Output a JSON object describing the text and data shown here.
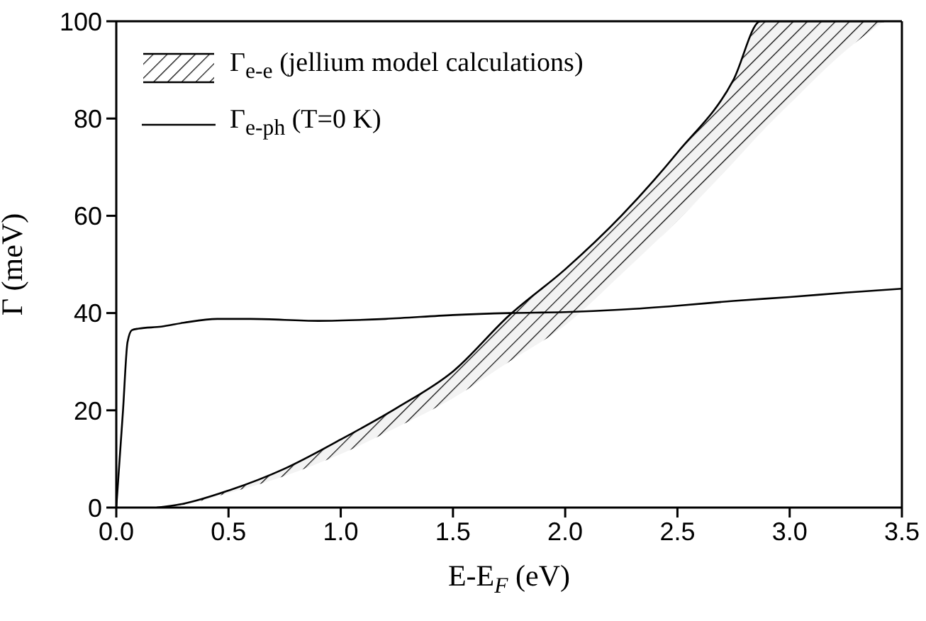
{
  "chart_data": {
    "type": "line",
    "xlabel": "E-E$_{F}$ (eV)",
    "ylabel": "Γ (meV)",
    "xlim": [
      0,
      3.5
    ],
    "ylim": [
      0,
      100
    ],
    "xticks": [
      {
        "value": 0,
        "label": "0.0"
      },
      {
        "value": 0.5,
        "label": "0.5"
      },
      {
        "value": 1,
        "label": "1.0"
      },
      {
        "value": 1.5,
        "label": "1.5"
      },
      {
        "value": 2,
        "label": "2.0"
      },
      {
        "value": 2.5,
        "label": "2.5"
      },
      {
        "value": 3,
        "label": "3.0"
      },
      {
        "value": 3.5,
        "label": "3.5"
      }
    ],
    "yticks": [
      0,
      20,
      40,
      60,
      80,
      100
    ],
    "grid": false,
    "legend": "top left",
    "series": [
      {
        "name": "Γ$_{e-e}$ (jellium model calculations)",
        "color": "#000000",
        "x": [
          0.18,
          0.3,
          0.5,
          0.75,
          1.0,
          1.25,
          1.5,
          1.75,
          2.0,
          2.25,
          2.5,
          2.75,
          2.87,
          3.0,
          3.25,
          3.42
        ],
        "lower": [
          0,
          0.6,
          3,
          6.5,
          11,
          16.5,
          22.5,
          30,
          37.5,
          48,
          59,
          71,
          77,
          83,
          94,
          100
        ],
        "upper": [
          0,
          0.8,
          3.5,
          8,
          14,
          20.5,
          28,
          39.5,
          49,
          60,
          73,
          88,
          100,
          100,
          100,
          100
        ],
        "values": [
          0,
          0.8,
          3.5,
          8,
          14,
          20.5,
          28,
          39.5,
          49,
          60,
          73,
          88,
          100,
          100,
          100,
          100
        ]
      },
      {
        "name": "Γ$_{e-ph}$ (T=0 K)",
        "color": "#000000",
        "x": [
          0,
          0.03,
          0.05,
          0.07,
          0.1,
          0.2,
          0.3,
          0.45,
          0.6,
          0.9,
          1.2,
          1.5,
          1.75,
          2.0,
          2.25,
          2.5,
          2.75,
          3.0,
          3.25,
          3.5
        ],
        "values": [
          0,
          20,
          34,
          36.5,
          36.8,
          37.2,
          38,
          38.8,
          38.8,
          38.4,
          38.8,
          39.6,
          40,
          40.2,
          40.7,
          41.5,
          42.5,
          43.3,
          44.2,
          45
        ]
      }
    ]
  }
}
